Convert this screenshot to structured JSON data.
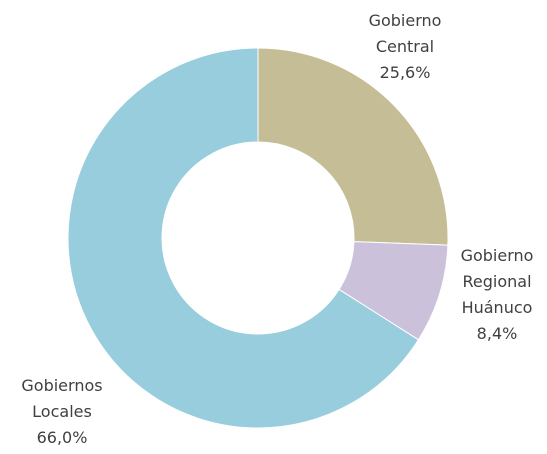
{
  "chart_data": {
    "type": "donut",
    "categories": [
      "Gobierno Central",
      "Gobierno Regional Huánuco",
      "Gobiernos Locales"
    ],
    "values": [
      25.6,
      8.4,
      66.0
    ],
    "value_labels": [
      "25,6%",
      "8,4%",
      "66,0%"
    ],
    "colors": [
      "#c5bd96",
      "#cbc1db",
      "#97cddd"
    ]
  }
}
